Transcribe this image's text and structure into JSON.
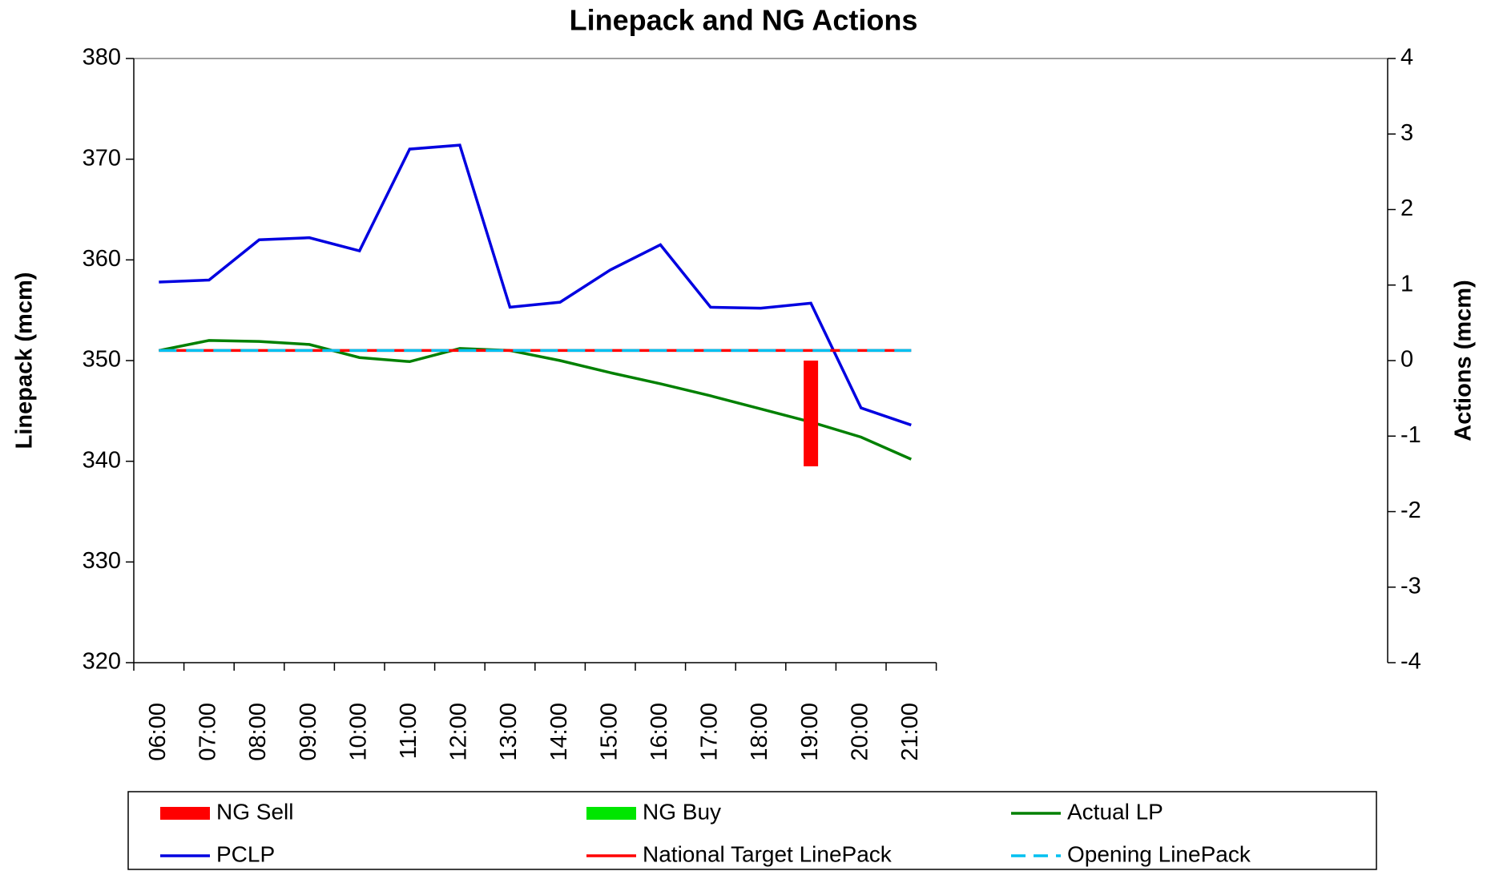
{
  "chart_data": {
    "type": "line",
    "title": "Linepack and NG Actions",
    "ylabel": "Linepack (mcm)",
    "y2label": "Actions (mcm)",
    "categories": [
      "06:00",
      "07:00",
      "08:00",
      "09:00",
      "10:00",
      "11:00",
      "12:00",
      "13:00",
      "14:00",
      "15:00",
      "16:00",
      "17:00",
      "18:00",
      "19:00",
      "20:00",
      "21:00"
    ],
    "ylim": [
      320,
      380
    ],
    "yticks": [
      320,
      330,
      340,
      350,
      360,
      370,
      380
    ],
    "y2lim": [
      -4,
      4
    ],
    "y2ticks": [
      -4,
      -3,
      -2,
      -1,
      0,
      1,
      2,
      3,
      4
    ],
    "legend": "bottom",
    "series": [
      {
        "name": "NG Sell",
        "type": "bar",
        "axis": "y2",
        "color": "#ff0000",
        "values": [
          null,
          null,
          null,
          null,
          null,
          null,
          null,
          null,
          null,
          null,
          null,
          null,
          null,
          -1.4,
          null,
          null
        ]
      },
      {
        "name": "NG Buy",
        "type": "bar",
        "axis": "y2",
        "color": "#00e600",
        "values": [
          null,
          null,
          null,
          null,
          null,
          null,
          null,
          null,
          null,
          null,
          null,
          null,
          null,
          null,
          null,
          null
        ]
      },
      {
        "name": "Actual LP",
        "type": "line",
        "color": "#008000",
        "values": [
          351,
          352,
          351.9,
          351.6,
          350.3,
          349.9,
          351.2,
          351,
          350,
          348.8,
          347.7,
          346.5,
          345.2,
          343.9,
          342.4,
          340.2
        ]
      },
      {
        "name": "PCLP",
        "type": "line",
        "color": "#0000e0",
        "values": [
          357.8,
          358,
          362,
          362.2,
          360.9,
          371,
          371.4,
          355.3,
          355.8,
          359,
          361.5,
          355.3,
          355.2,
          355.7,
          345.3,
          343.6
        ]
      },
      {
        "name": "National Target LinePack",
        "type": "line",
        "color": "#ff0000",
        "values": [
          351,
          351,
          351,
          351,
          351,
          351,
          351,
          351,
          351,
          351,
          351,
          351,
          351,
          351,
          351,
          351
        ]
      },
      {
        "name": "Opening LinePack",
        "type": "line",
        "dashed": true,
        "color": "#00c0f0",
        "values": [
          351,
          351,
          351,
          351,
          351,
          351,
          351,
          351,
          351,
          351,
          351,
          351,
          351,
          351,
          351,
          351
        ]
      }
    ]
  }
}
